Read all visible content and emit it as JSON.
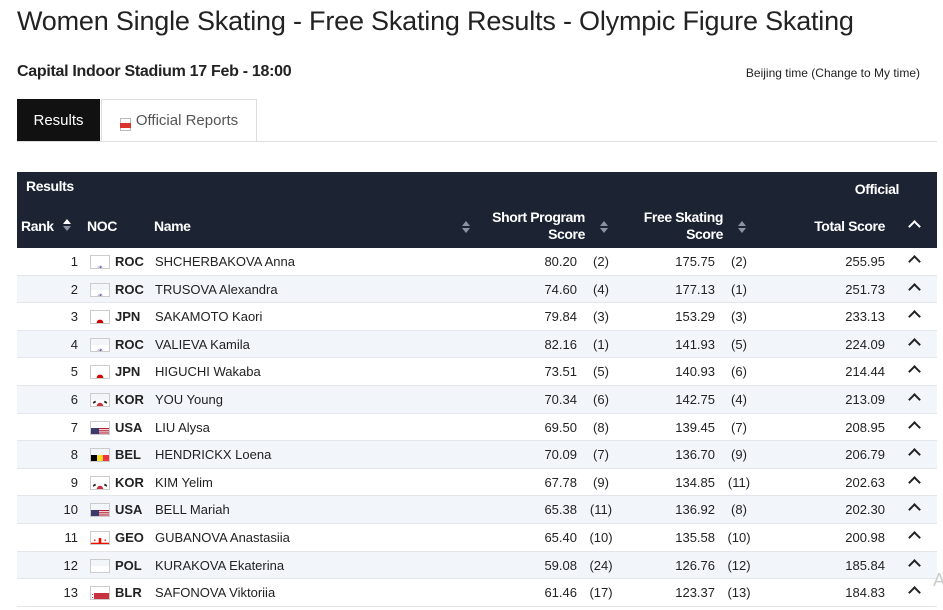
{
  "page": {
    "title": "Women Single Skating - Free Skating Results - Olympic Figure Skating",
    "venue": "Capital Indoor Stadium 17 Feb - 18:00",
    "timezone": "Beijing time (Change to My time)"
  },
  "tabs": [
    {
      "label": "Results",
      "active": true
    },
    {
      "label": "Official Reports",
      "active": false,
      "icon": "pdf-icon"
    }
  ],
  "table": {
    "section_label": "Results",
    "status_label": "Official",
    "headers": {
      "rank": "Rank",
      "noc": "NOC",
      "name": "Name",
      "short_program": "Short Program Score",
      "free_skating": "Free Skating Score",
      "total": "Total Score"
    },
    "rows": [
      {
        "rank": "1",
        "noc": "ROC",
        "name": "SHCHERBAKOVA Anna",
        "sp": "80.20",
        "sp_rank": "(2)",
        "fs": "175.75",
        "fs_rank": "(2)",
        "total": "255.95"
      },
      {
        "rank": "2",
        "noc": "ROC",
        "name": "TRUSOVA Alexandra",
        "sp": "74.60",
        "sp_rank": "(4)",
        "fs": "177.13",
        "fs_rank": "(1)",
        "total": "251.73"
      },
      {
        "rank": "3",
        "noc": "JPN",
        "name": "SAKAMOTO Kaori",
        "sp": "79.84",
        "sp_rank": "(3)",
        "fs": "153.29",
        "fs_rank": "(3)",
        "total": "233.13"
      },
      {
        "rank": "4",
        "noc": "ROC",
        "name": "VALIEVA Kamila",
        "sp": "82.16",
        "sp_rank": "(1)",
        "fs": "141.93",
        "fs_rank": "(5)",
        "total": "224.09"
      },
      {
        "rank": "5",
        "noc": "JPN",
        "name": "HIGUCHI Wakaba",
        "sp": "73.51",
        "sp_rank": "(5)",
        "fs": "140.93",
        "fs_rank": "(6)",
        "total": "214.44"
      },
      {
        "rank": "6",
        "noc": "KOR",
        "name": "YOU Young",
        "sp": "70.34",
        "sp_rank": "(6)",
        "fs": "142.75",
        "fs_rank": "(4)",
        "total": "213.09"
      },
      {
        "rank": "7",
        "noc": "USA",
        "name": "LIU Alysa",
        "sp": "69.50",
        "sp_rank": "(8)",
        "fs": "139.45",
        "fs_rank": "(7)",
        "total": "208.95"
      },
      {
        "rank": "8",
        "noc": "BEL",
        "name": "HENDRICKX Loena",
        "sp": "70.09",
        "sp_rank": "(7)",
        "fs": "136.70",
        "fs_rank": "(9)",
        "total": "206.79"
      },
      {
        "rank": "9",
        "noc": "KOR",
        "name": "KIM Yelim",
        "sp": "67.78",
        "sp_rank": "(9)",
        "fs": "134.85",
        "fs_rank": "(11)",
        "total": "202.63"
      },
      {
        "rank": "10",
        "noc": "USA",
        "name": "BELL Mariah",
        "sp": "65.38",
        "sp_rank": "(11)",
        "fs": "136.92",
        "fs_rank": "(8)",
        "total": "202.30"
      },
      {
        "rank": "11",
        "noc": "GEO",
        "name": "GUBANOVA Anastasiia",
        "sp": "65.40",
        "sp_rank": "(10)",
        "fs": "135.58",
        "fs_rank": "(10)",
        "total": "200.98"
      },
      {
        "rank": "12",
        "noc": "POL",
        "name": "KURAKOVA Ekaterina",
        "sp": "59.08",
        "sp_rank": "(24)",
        "fs": "126.76",
        "fs_rank": "(12)",
        "total": "185.84"
      },
      {
        "rank": "13",
        "noc": "BLR",
        "name": "SAFONOVA Viktoriia",
        "sp": "61.46",
        "sp_rank": "(17)",
        "fs": "123.37",
        "fs_rank": "(13)",
        "total": "184.83"
      }
    ]
  },
  "colors": {
    "header_bg": "#1c2433",
    "active_tab_bg": "#111111",
    "alt_row_bg": "#f2f6fb"
  }
}
